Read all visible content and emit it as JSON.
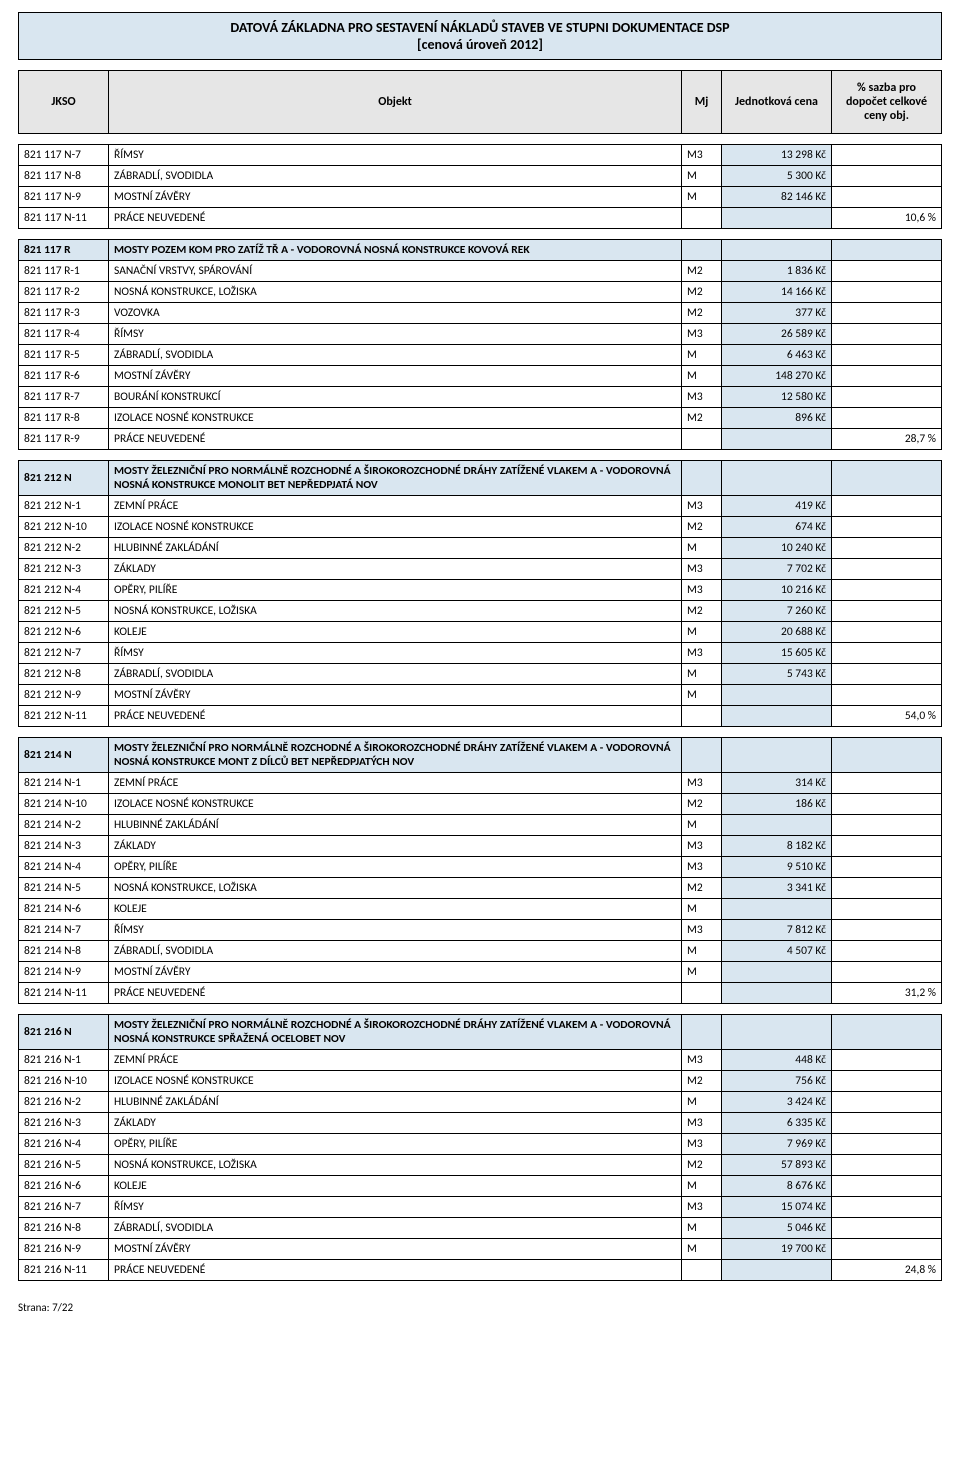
{
  "title": {
    "line1": "DATOVÁ ZÁKLADNA PRO SESTAVENÍ NÁKLADŮ STAVEB VE STUPNI DOKUMENTACE DSP",
    "line2": "[cenová úroveň 2012]"
  },
  "columns": {
    "jkso": "JKSO",
    "objekt": "Objekt",
    "mj": "Mj",
    "price": "Jednotková cena",
    "pct": "% sazba pro dopočet celkové ceny obj."
  },
  "footer": "Strana: 7/22",
  "tables": [
    {
      "rows": [
        {
          "jkso": "821 117 N-7",
          "obj": "ŘÍMSY",
          "mj": "M3",
          "price": "13 298 Kč",
          "pct": ""
        },
        {
          "jkso": "821 117 N-8",
          "obj": "ZÁBRADLÍ, SVODIDLA",
          "mj": "M",
          "price": "5 300 Kč",
          "pct": ""
        },
        {
          "jkso": "821 117 N-9",
          "obj": "MOSTNÍ ZÁVĚRY",
          "mj": "M",
          "price": "82 146 Kč",
          "pct": ""
        },
        {
          "jkso": "821 117 N-11",
          "obj": "PRÁCE NEUVEDENÉ",
          "mj": "",
          "price": "",
          "pct": "10,6 %"
        }
      ]
    },
    {
      "section": {
        "jkso": "821 117 R",
        "obj": "MOSTY POZEM KOM PRO ZATÍŽ TŘ A - VODOROVNÁ NOSNÁ KONSTRUKCE KOVOVÁ REK"
      },
      "rows": [
        {
          "jkso": "821 117 R-1",
          "obj": "SANAČNÍ VRSTVY, SPÁROVÁNÍ",
          "mj": "M2",
          "price": "1 836 Kč",
          "pct": ""
        },
        {
          "jkso": "821 117 R-2",
          "obj": "NOSNÁ KONSTRUKCE, LOŽISKA",
          "mj": "M2",
          "price": "14 166 Kč",
          "pct": ""
        },
        {
          "jkso": "821 117 R-3",
          "obj": "VOZOVKA",
          "mj": "M2",
          "price": "377 Kč",
          "pct": ""
        },
        {
          "jkso": "821 117 R-4",
          "obj": "ŘÍMSY",
          "mj": "M3",
          "price": "26 589 Kč",
          "pct": ""
        },
        {
          "jkso": "821 117 R-5",
          "obj": "ZÁBRADLÍ, SVODIDLA",
          "mj": "M",
          "price": "6 463 Kč",
          "pct": ""
        },
        {
          "jkso": "821 117 R-6",
          "obj": "MOSTNÍ ZÁVĚRY",
          "mj": "M",
          "price": "148 270 Kč",
          "pct": ""
        },
        {
          "jkso": "821 117 R-7",
          "obj": "BOURÁNÍ KONSTRUKCÍ",
          "mj": "M3",
          "price": "12 580 Kč",
          "pct": ""
        },
        {
          "jkso": "821 117 R-8",
          "obj": "IZOLACE NOSNÉ KONSTRUKCE",
          "mj": "M2",
          "price": "896 Kč",
          "pct": ""
        },
        {
          "jkso": "821 117 R-9",
          "obj": "PRÁCE NEUVEDENÉ",
          "mj": "",
          "price": "",
          "pct": "28,7 %"
        }
      ]
    },
    {
      "section": {
        "jkso": "821 212 N",
        "obj": "MOSTY ŽELEZNIČNÍ PRO NORMÁLNĚ ROZCHODNÉ A ŠIROKOROZCHODNÉ DRÁHY ZATÍŽENÉ VLAKEM A - VODOROVNÁ NOSNÁ KONSTRUKCE MONOLIT BET NEPŘEDPJATÁ NOV"
      },
      "rows": [
        {
          "jkso": "821 212 N-1",
          "obj": "ZEMNÍ PRÁCE",
          "mj": "M3",
          "price": "419 Kč",
          "pct": ""
        },
        {
          "jkso": "821 212 N-10",
          "obj": "IZOLACE NOSNÉ KONSTRUKCE",
          "mj": "M2",
          "price": "674 Kč",
          "pct": ""
        },
        {
          "jkso": "821 212 N-2",
          "obj": "HLUBINNÉ ZAKLÁDÁNÍ",
          "mj": "M",
          "price": "10 240 Kč",
          "pct": ""
        },
        {
          "jkso": "821 212 N-3",
          "obj": "ZÁKLADY",
          "mj": "M3",
          "price": "7 702 Kč",
          "pct": ""
        },
        {
          "jkso": "821 212 N-4",
          "obj": "OPĚRY, PILÍŘE",
          "mj": "M3",
          "price": "10 216 Kč",
          "pct": ""
        },
        {
          "jkso": "821 212 N-5",
          "obj": "NOSNÁ KONSTRUKCE, LOŽISKA",
          "mj": "M2",
          "price": "7 260 Kč",
          "pct": ""
        },
        {
          "jkso": "821 212 N-6",
          "obj": "KOLEJE",
          "mj": "M",
          "price": "20 688 Kč",
          "pct": ""
        },
        {
          "jkso": "821 212 N-7",
          "obj": "ŘÍMSY",
          "mj": "M3",
          "price": "15 605 Kč",
          "pct": ""
        },
        {
          "jkso": "821 212 N-8",
          "obj": "ZÁBRADLÍ, SVODIDLA",
          "mj": "M",
          "price": "5 743 Kč",
          "pct": ""
        },
        {
          "jkso": "821 212 N-9",
          "obj": "MOSTNÍ ZÁVĚRY",
          "mj": "M",
          "price": "",
          "pct": ""
        },
        {
          "jkso": "821 212 N-11",
          "obj": "PRÁCE NEUVEDENÉ",
          "mj": "",
          "price": "",
          "pct": "54,0 %"
        }
      ]
    },
    {
      "section": {
        "jkso": "821 214 N",
        "obj": "MOSTY ŽELEZNIČNÍ PRO NORMÁLNĚ ROZCHODNÉ A ŠIROKOROZCHODNÉ DRÁHY ZATÍŽENÉ VLAKEM A - VODOROVNÁ NOSNÁ KONSTRUKCE MONT Z DÍLCŮ BET NEPŘEDPJATÝCH NOV"
      },
      "rows": [
        {
          "jkso": "821 214 N-1",
          "obj": "ZEMNÍ PRÁCE",
          "mj": "M3",
          "price": "314 Kč",
          "pct": ""
        },
        {
          "jkso": "821 214 N-10",
          "obj": "IZOLACE NOSNÉ KONSTRUKCE",
          "mj": "M2",
          "price": "186 Kč",
          "pct": ""
        },
        {
          "jkso": "821 214 N-2",
          "obj": "HLUBINNÉ ZAKLÁDÁNÍ",
          "mj": "M",
          "price": "",
          "pct": ""
        },
        {
          "jkso": "821 214 N-3",
          "obj": "ZÁKLADY",
          "mj": "M3",
          "price": "8 182 Kč",
          "pct": ""
        },
        {
          "jkso": "821 214 N-4",
          "obj": "OPĚRY, PILÍŘE",
          "mj": "M3",
          "price": "9 510 Kč",
          "pct": ""
        },
        {
          "jkso": "821 214 N-5",
          "obj": "NOSNÁ KONSTRUKCE, LOŽISKA",
          "mj": "M2",
          "price": "3 341 Kč",
          "pct": ""
        },
        {
          "jkso": "821 214 N-6",
          "obj": "KOLEJE",
          "mj": "M",
          "price": "",
          "pct": ""
        },
        {
          "jkso": "821 214 N-7",
          "obj": "ŘÍMSY",
          "mj": "M3",
          "price": "7 812 Kč",
          "pct": ""
        },
        {
          "jkso": "821 214 N-8",
          "obj": "ZÁBRADLÍ, SVODIDLA",
          "mj": "M",
          "price": "4 507 Kč",
          "pct": ""
        },
        {
          "jkso": "821 214 N-9",
          "obj": "MOSTNÍ ZÁVĚRY",
          "mj": "M",
          "price": "",
          "pct": ""
        },
        {
          "jkso": "821 214 N-11",
          "obj": "PRÁCE NEUVEDENÉ",
          "mj": "",
          "price": "",
          "pct": "31,2 %"
        }
      ]
    },
    {
      "section": {
        "jkso": "821 216 N",
        "obj": "MOSTY ŽELEZNIČNÍ PRO NORMÁLNĚ ROZCHODNÉ A ŠIROKOROZCHODNÉ DRÁHY ZATÍŽENÉ VLAKEM A - VODOROVNÁ NOSNÁ KONSTRUKCE SPŘAŽENÁ OCELOBET NOV"
      },
      "rows": [
        {
          "jkso": "821 216 N-1",
          "obj": "ZEMNÍ PRÁCE",
          "mj": "M3",
          "price": "448 Kč",
          "pct": ""
        },
        {
          "jkso": "821 216 N-10",
          "obj": "IZOLACE NOSNÉ KONSTRUKCE",
          "mj": "M2",
          "price": "756 Kč",
          "pct": ""
        },
        {
          "jkso": "821 216 N-2",
          "obj": "HLUBINNÉ ZAKLÁDÁNÍ",
          "mj": "M",
          "price": "3 424 Kč",
          "pct": ""
        },
        {
          "jkso": "821 216 N-3",
          "obj": "ZÁKLADY",
          "mj": "M3",
          "price": "6 335 Kč",
          "pct": ""
        },
        {
          "jkso": "821 216 N-4",
          "obj": "OPĚRY, PILÍŘE",
          "mj": "M3",
          "price": "7 969 Kč",
          "pct": ""
        },
        {
          "jkso": "821 216 N-5",
          "obj": "NOSNÁ KONSTRUKCE, LOŽISKA",
          "mj": "M2",
          "price": "57 893 Kč",
          "pct": ""
        },
        {
          "jkso": "821 216 N-6",
          "obj": "KOLEJE",
          "mj": "M",
          "price": "8 676 Kč",
          "pct": ""
        },
        {
          "jkso": "821 216 N-7",
          "obj": "ŘÍMSY",
          "mj": "M3",
          "price": "15 074 Kč",
          "pct": ""
        },
        {
          "jkso": "821 216 N-8",
          "obj": "ZÁBRADLÍ, SVODIDLA",
          "mj": "M",
          "price": "5 046 Kč",
          "pct": ""
        },
        {
          "jkso": "821 216 N-9",
          "obj": "MOSTNÍ ZÁVĚRY",
          "mj": "M",
          "price": "19 700 Kč",
          "pct": ""
        },
        {
          "jkso": "821 216 N-11",
          "obj": "PRÁCE NEUVEDENÉ",
          "mj": "",
          "price": "",
          "pct": "24,8 %"
        }
      ]
    }
  ]
}
